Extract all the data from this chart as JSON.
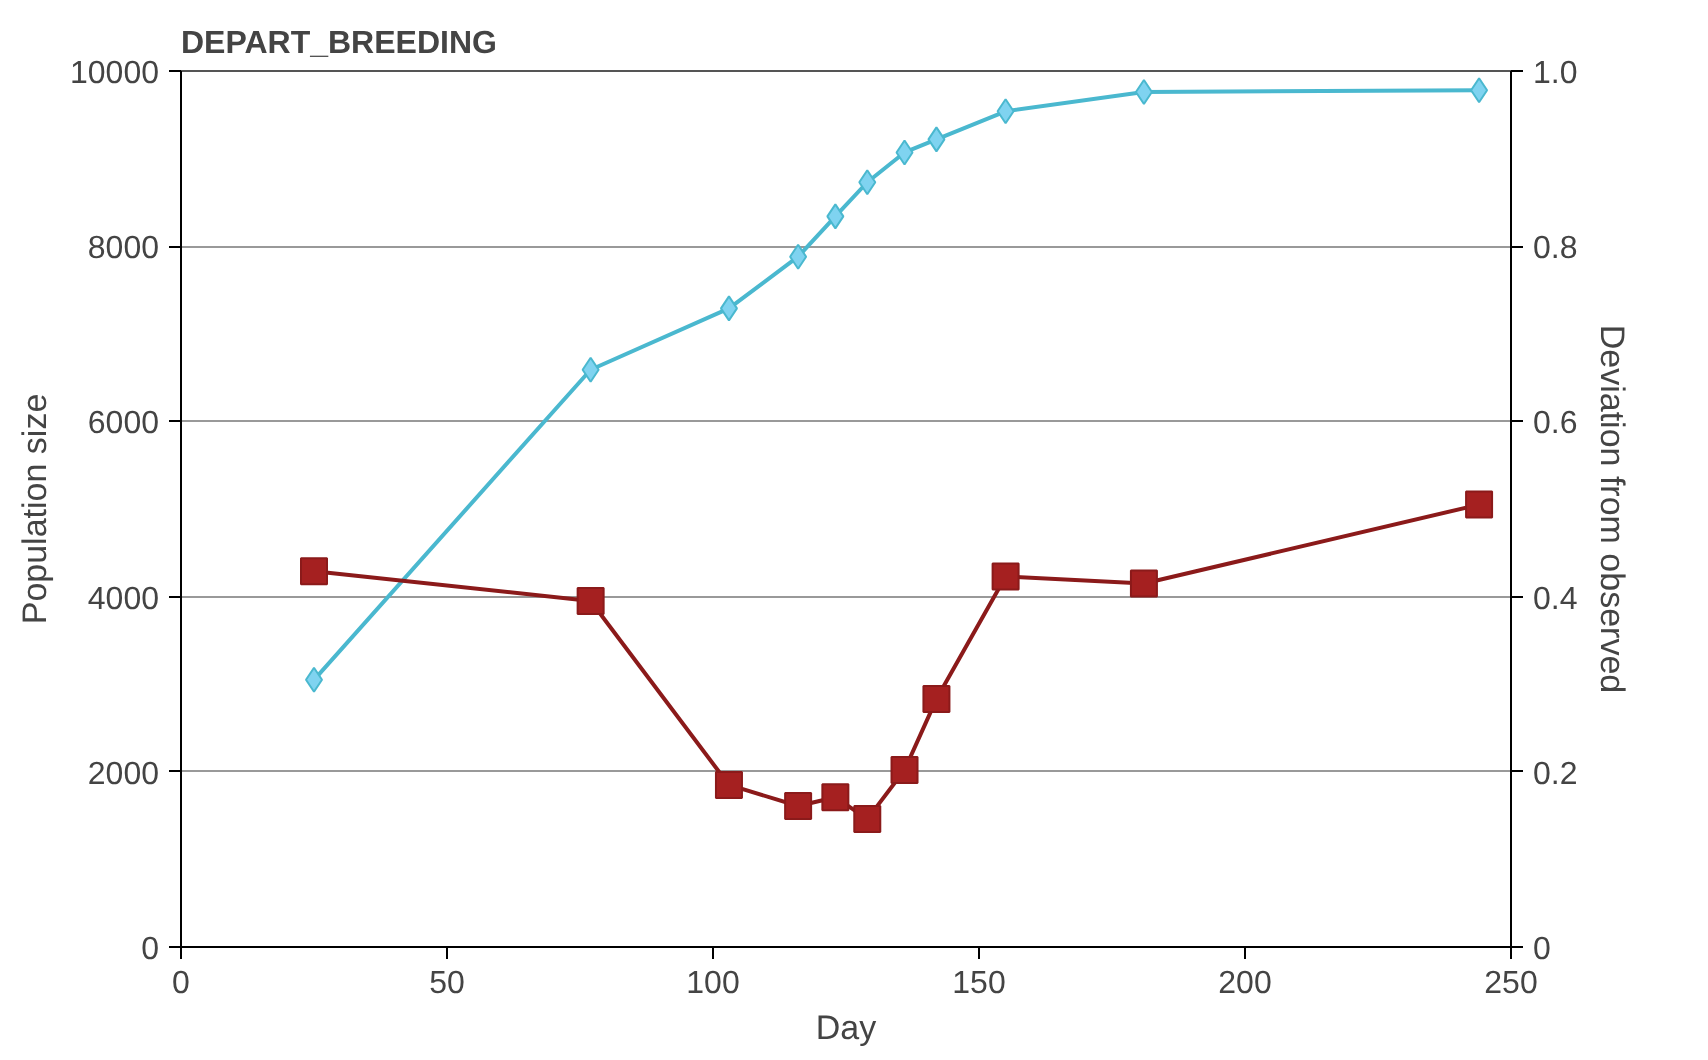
{
  "chart_data": {
    "type": "line",
    "title": "DEPART_BREEDING",
    "xlabel": "Day",
    "ylabel": "Population size",
    "y2label": "Deviation from observed",
    "x": [
      25,
      77,
      103,
      116,
      123,
      129,
      136,
      142,
      155,
      181,
      244
    ],
    "series": [
      {
        "color": "#4ab8cf",
        "marker": "diamond",
        "values": [
          3050,
          6590,
          7290,
          7880,
          8340,
          8730,
          9070,
          9220,
          9540,
          9760,
          9780
        ]
      },
      {
        "color": "#8b1a1a",
        "marker": "square",
        "axis": "y2",
        "values": [
          0.429,
          0.395,
          0.185,
          0.161,
          0.171,
          0.146,
          0.202,
          0.283,
          0.423,
          0.415,
          0.505
        ]
      }
    ],
    "xlim": [
      0,
      250
    ],
    "xticks": [
      0,
      50,
      100,
      150,
      200,
      250
    ],
    "ylim": [
      0,
      10000
    ],
    "yticks": [
      0,
      2000,
      4000,
      6000,
      8000,
      10000
    ],
    "y2lim": [
      0,
      1
    ],
    "y2ticks": [
      {
        "value": 0,
        "label": "0"
      },
      {
        "value": 0.2,
        "label": "0.2"
      },
      {
        "value": 0.4,
        "label": "0.4"
      },
      {
        "value": 0.6,
        "label": "0.6"
      },
      {
        "value": 0.8,
        "label": "0.8"
      },
      {
        "value": 1,
        "label": "1.0"
      }
    ],
    "grid": "y"
  }
}
